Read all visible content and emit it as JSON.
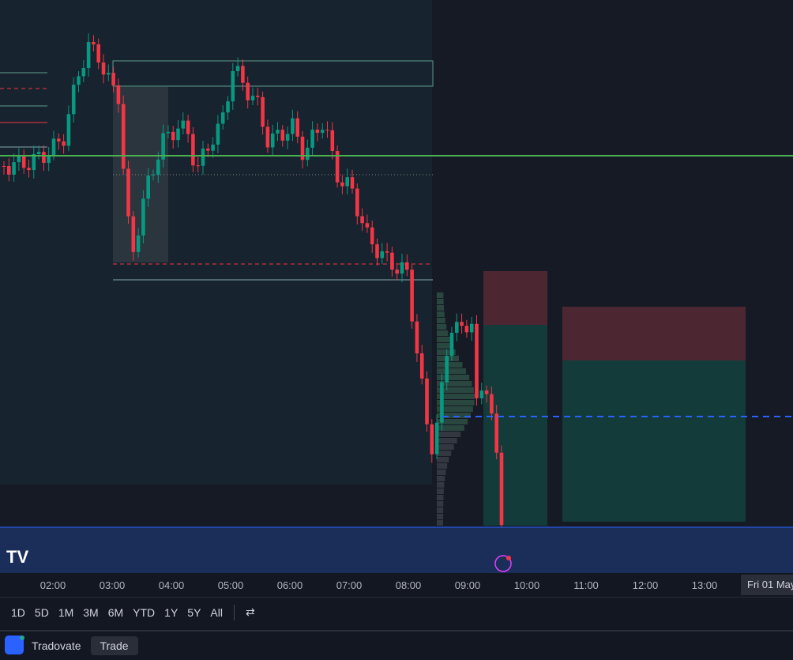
{
  "time_axis": {
    "labels": [
      "02:00",
      "03:00",
      "04:00",
      "05:00",
      "06:00",
      "07:00",
      "08:00",
      "09:00",
      "10:00",
      "11:00",
      "12:00",
      "13:00"
    ],
    "date_label": "Fri 01 May"
  },
  "range_buttons": [
    "1D",
    "5D",
    "1M",
    "3M",
    "6M",
    "YTD",
    "1Y",
    "5Y",
    "All"
  ],
  "footer": {
    "broker": "Tradovate",
    "trade_button": "Trade"
  }
}
